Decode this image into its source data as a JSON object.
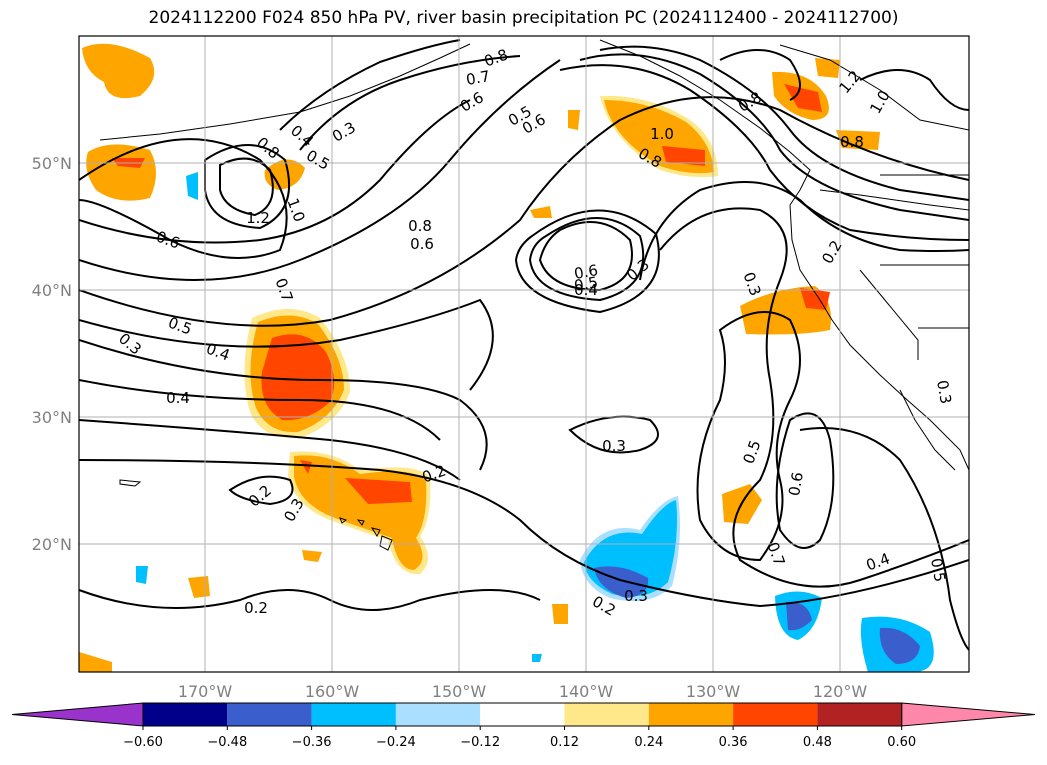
{
  "title": "2024112200 F024 850 hPa PV, river basin precipitation PC (2024112400 - 2024112700)",
  "lat_labels": [
    "50°N",
    "40°N",
    "30°N",
    "20°N"
  ],
  "lon_labels": [
    "170°W",
    "160°W",
    "150°W",
    "140°W",
    "130°W",
    "120°W"
  ],
  "colorbar": {
    "tick_labels": [
      "−0.60",
      "−0.48",
      "−0.36",
      "−0.24",
      "−0.12",
      "0.12",
      "0.24",
      "0.36",
      "0.48",
      "0.60"
    ],
    "colors": [
      "#9933cc",
      "#00008b",
      "#3a5fcd",
      "#00bfff",
      "#aadfff",
      "#ffffff",
      "#ffe88a",
      "#ffa500",
      "#ff4500",
      "#b22222",
      "#ff88aa",
      "#ff88aa"
    ]
  },
  "contour_labels": [
    "0.8",
    "0.7",
    "0.6",
    "0.5",
    "0.6",
    "0.3",
    "0.4",
    "0.5",
    "0.8",
    "1.0",
    "1.2",
    "0.6",
    "0.8",
    "0.6",
    "0.6",
    "0.5",
    "0.4",
    "0.3",
    "0.7",
    "0.5",
    "0.4",
    "0.3",
    "0.4",
    "0.2",
    "0.3",
    "0.2",
    "0.2",
    "0.3",
    "0.3",
    "0.2",
    "0.5",
    "0.6",
    "0.7",
    "0.4",
    "0.5",
    "0.3",
    "0.2",
    "0.3",
    "0.8",
    "1.2",
    "1.0",
    "0.8",
    "1.0",
    "0.8"
  ]
}
